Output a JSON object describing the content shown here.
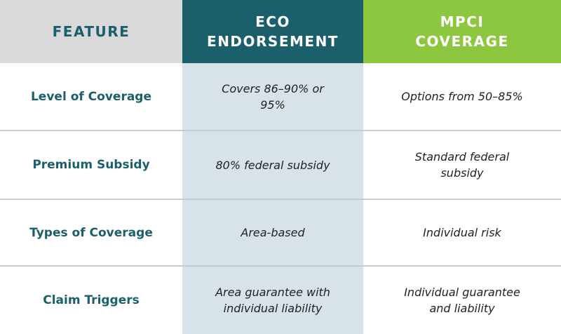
{
  "table": {
    "header": [
      "FEATURE",
      "ECO ENDORSEMENT",
      "MPCI COVERAGE"
    ],
    "rows": [
      [
        "Level of Coverage",
        "Covers 86–90% or 95%",
        "Options from 50–85%"
      ],
      [
        "Premium Subsidy",
        "80% federal subsidy",
        "Standard federal subsidy"
      ],
      [
        "Types of Coverage",
        "Area-based",
        "Individual risk"
      ],
      [
        "Claim Triggers",
        "Area guarantee with individual liability",
        "Individual guarantee and liability"
      ]
    ]
  }
}
